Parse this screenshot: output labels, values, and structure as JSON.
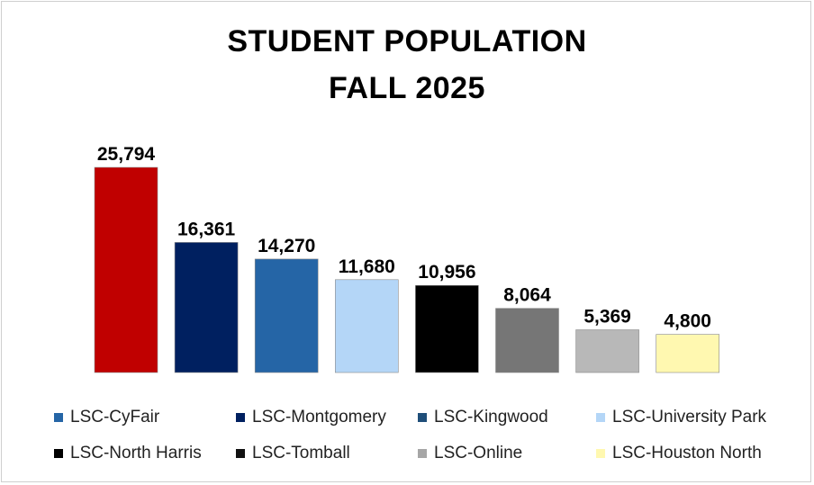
{
  "chart_data": {
    "type": "bar",
    "title": [
      "STUDENT POPULATION",
      "FALL 2025"
    ],
    "categories": [
      "LSC-CyFair",
      "LSC-Montgomery",
      "LSC-Kingwood",
      "LSC-University Park",
      "LSC-North Harris",
      "LSC-Tomball",
      "LSC-Online",
      "LSC-Houston North"
    ],
    "values": [
      25794,
      16361,
      14270,
      11680,
      10956,
      8064,
      5369,
      4800
    ],
    "value_labels": [
      "25,794",
      "16,361",
      "14,270",
      "11,680",
      "10,956",
      "8,064",
      "5,369",
      "4,800"
    ],
    "bar_colors": [
      "#c00000",
      "#002060",
      "#2565a6",
      "#b4d6f7",
      "#000000",
      "#767676",
      "#b8b8b8",
      "#fff8b0"
    ],
    "legend_colors": [
      "#2565a6",
      "#002060",
      "#1f4e79",
      "#b4d6f7",
      "#000000",
      "#111111",
      "#a6a6a6",
      "#fff8b0"
    ],
    "legend_position": "bottom",
    "grid": false,
    "ylim": [
      0,
      26000
    ],
    "xlabel": "",
    "ylabel": ""
  }
}
